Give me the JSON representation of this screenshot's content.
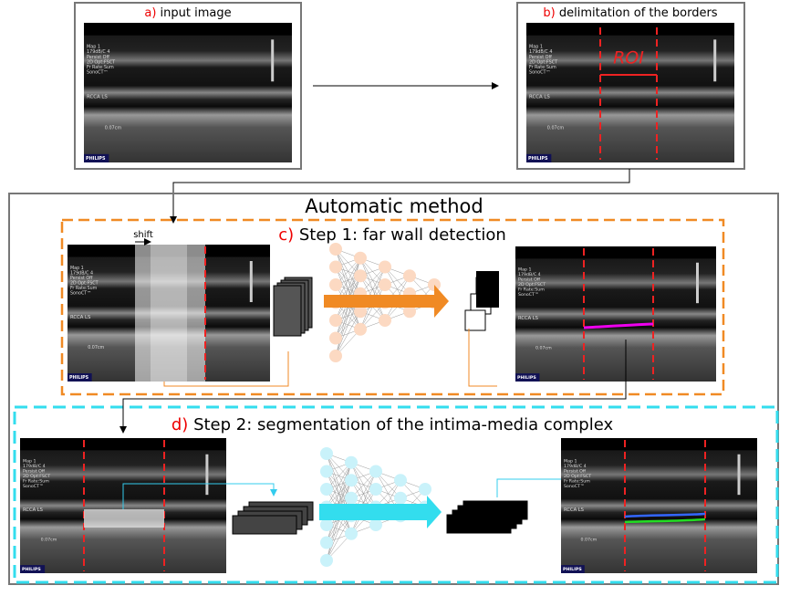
{
  "panels": {
    "a": {
      "letter": "a)",
      "label": "input image"
    },
    "b": {
      "letter": "b)",
      "label": "delimitation of the borders",
      "roi": "ROI"
    },
    "method": {
      "title": "Automatic method"
    },
    "c": {
      "letter": "c)",
      "label": "Step 1: far wall detection",
      "shift": "shift"
    },
    "d": {
      "letter": "d)",
      "label": "Step 2: segmentation of the intima-media complex"
    }
  },
  "overlay": {
    "lines": [
      "Map 1",
      "179dB/C 4",
      "Persist Off",
      "2D Opt:FSCT",
      "Fr Rate:Sum",
      "SonoCT™"
    ],
    "view": "RCCA  LS",
    "depth": "0.07cm",
    "brand": "PHILIPS"
  }
}
